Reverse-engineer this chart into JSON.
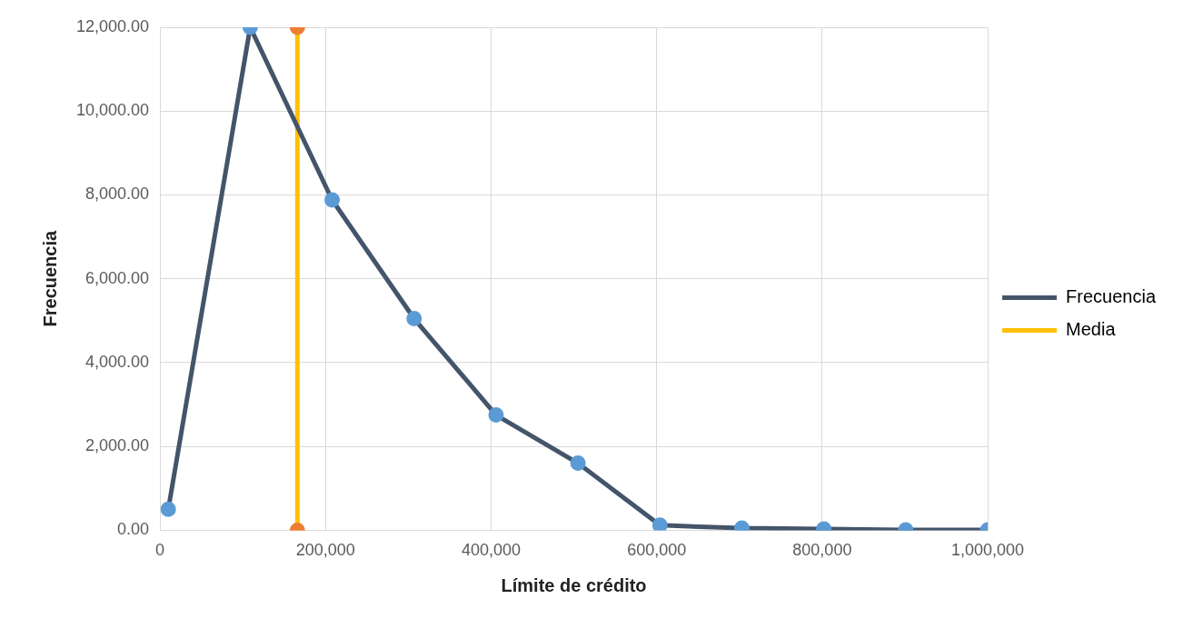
{
  "chart_data": {
    "type": "line",
    "xlabel": "Límite de crédito",
    "ylabel": "Frecuencia",
    "xlim": [
      0,
      1000000
    ],
    "xticks": [
      0,
      {
        "value": 200000,
        "label": "200,000"
      },
      {
        "value": 400000,
        "label": "400,000"
      },
      {
        "value": 600000,
        "label": "600,000"
      },
      {
        "value": 800000,
        "label": "800,000"
      },
      {
        "value": 1000000,
        "label": "1,000,000"
      }
    ],
    "ylim": [
      0,
      12000
    ],
    "yticks": [
      {
        "value": 0,
        "label": "0.00"
      },
      {
        "value": 2000,
        "label": "2,000.00"
      },
      {
        "value": 4000,
        "label": "4,000.00"
      },
      {
        "value": 6000,
        "label": "6,000.00"
      },
      {
        "value": 8000,
        "label": "8,000.00"
      },
      {
        "value": 10000,
        "label": "10,000.00"
      },
      {
        "value": 12000,
        "label": "12,000.00"
      }
    ],
    "grid": true,
    "legend": "right",
    "marker": "circle",
    "line_style": "solid",
    "series": [
      {
        "name": "Frecuencia",
        "color": "#44546a",
        "colors": [
          "#5b9bd5",
          "#5b9bd5",
          "#5b9bd5",
          "#5b9bd5",
          "#5b9bd5",
          "#5b9bd5",
          "#5b9bd5",
          "#5b9bd5",
          "#5b9bd5",
          "#5b9bd5",
          "#5b9bd5"
        ],
        "x": [
          10000,
          109000,
          208000,
          307000,
          406000,
          505000,
          604000,
          703000,
          802000,
          901000,
          1000000
        ],
        "values": [
          500,
          12000,
          7880,
          5050,
          2750,
          1600,
          120,
          50,
          30,
          10,
          10
        ]
      },
      {
        "name": "Media",
        "color": "#ffc000",
        "colors": [
          "#ed7d31",
          "#ed7d31"
        ],
        "x": [
          166000,
          166000
        ],
        "values": [
          0,
          12000
        ]
      }
    ]
  }
}
